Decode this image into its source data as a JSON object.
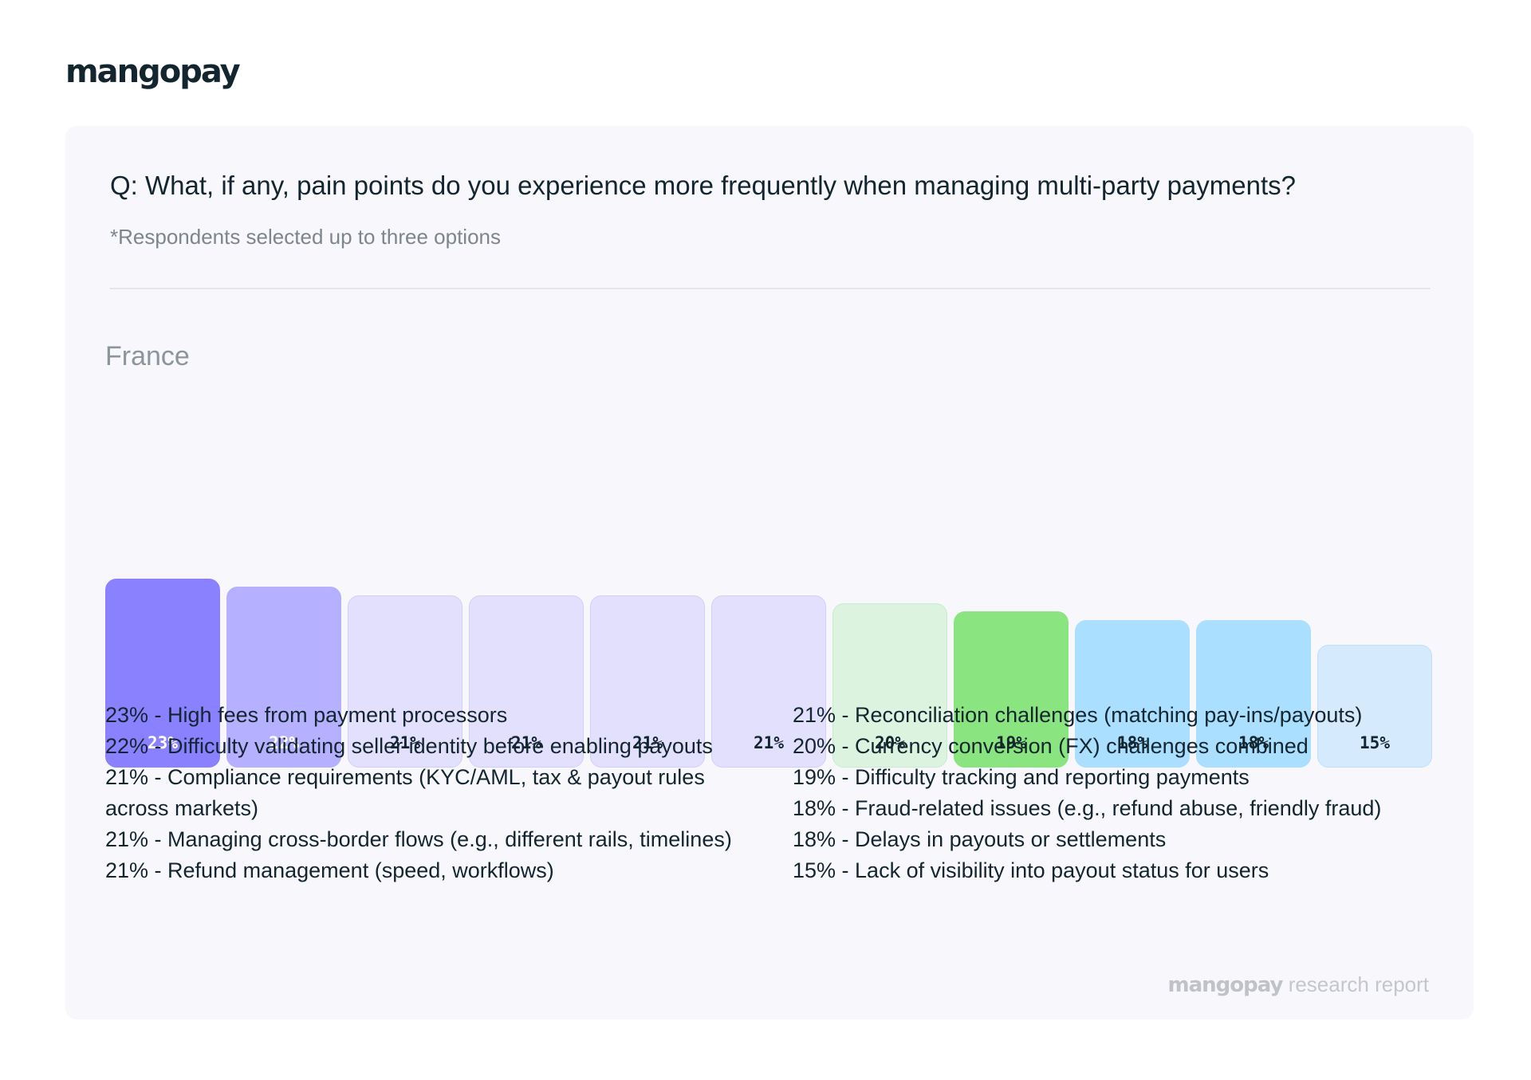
{
  "logo": "mangopay",
  "question": "Q: What, if any, pain points do you experience more frequently when managing multi-party payments?",
  "note": "*Respondents selected up to three options",
  "region": "France",
  "chart_data": {
    "type": "bar",
    "values": [
      23,
      22,
      21,
      21,
      21,
      21,
      20,
      19,
      18,
      18,
      15
    ],
    "labels": [
      "23%",
      "22%",
      "21%",
      "21%",
      "21%",
      "21%",
      "20%",
      "19%",
      "18%",
      "18%",
      "15%"
    ],
    "colors": [
      "#8981ff",
      "#b5b0ff",
      "#e3e0fe",
      "#e3e0fe",
      "#e3e0fe",
      "#e3e0fe",
      "#dcf4df",
      "#8ae47f",
      "#aadfff",
      "#aadfff",
      "#d6eafe"
    ],
    "border_colors": [
      "#8981ff",
      "#b5b0ff",
      "#d2cefa",
      "#d2cefa",
      "#d2cefa",
      "#d2cefa",
      "#c7ebcc",
      "#8ae47f",
      "#aadfff",
      "#aadfff",
      "#bfdff8"
    ],
    "label_colors": [
      "#ffffff",
      "#ffffff",
      "#13262f",
      "#13262f",
      "#13262f",
      "#13262f",
      "#13262f",
      "#13262f",
      "#13262f",
      "#13262f",
      "#13262f"
    ],
    "grid": false,
    "legend": "below"
  },
  "legend_left": [
    "23% - High fees from payment processors",
    "22% - Difficulty validating seller identity before enabling payouts",
    "21% - Compliance requirements (KYC/AML, tax & payout rules across markets)",
    "21% - Managing cross-border flows (e.g., different rails, timelines)",
    "21% - Refund management (speed, workflows)"
  ],
  "legend_right": [
    "21% - Reconciliation challenges (matching pay-ins/payouts)",
    "20% - Currency conversion (FX) challenges combined",
    "19% - Difficulty tracking and reporting payments",
    "18% - Fraud-related issues (e.g., refund abuse, friendly fraud)",
    "18% - Delays in payouts or settlements",
    "15% - Lack of visibility into payout status for users"
  ],
  "footer": {
    "brand": "mangopay",
    "text": " research report"
  }
}
